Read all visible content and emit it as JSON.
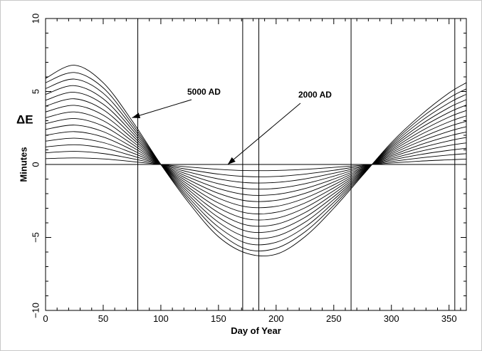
{
  "chart_data": {
    "type": "line",
    "title": "",
    "xlabel": "Day of Year",
    "ylabel": "Minutes",
    "side_label": "ΔE",
    "xlim": [
      0,
      365
    ],
    "ylim": [
      -10,
      10
    ],
    "x_ticks": [
      0,
      50,
      100,
      150,
      200,
      250,
      300,
      350
    ],
    "x_tick_labels": [
      "0",
      "50",
      "100",
      "150",
      "200",
      "250",
      "300",
      "350"
    ],
    "y_ticks": [
      -10,
      -5,
      0,
      5,
      10
    ],
    "y_tick_labels": [
      "−10",
      "−5",
      "0",
      "5",
      "10"
    ],
    "grid": false,
    "reference_lines_x": [
      80,
      171,
      185,
      265,
      355
    ],
    "reference_line_y": 0,
    "series_count": 15,
    "x": [
      0,
      25,
      50,
      75,
      100,
      125,
      150,
      175,
      200,
      225,
      250,
      275,
      300,
      325,
      350,
      365
    ],
    "series": [
      {
        "values": [
          0.4,
          0.45,
          0.38,
          0.2,
          0.0,
          -0.18,
          -0.33,
          -0.42,
          -0.41,
          -0.33,
          -0.2,
          -0.05,
          0.1,
          0.23,
          0.32,
          0.37
        ]
      },
      {
        "values": [
          0.8,
          0.9,
          0.75,
          0.4,
          0.0,
          -0.36,
          -0.66,
          -0.83,
          -0.82,
          -0.66,
          -0.4,
          -0.1,
          0.2,
          0.45,
          0.65,
          0.74
        ]
      },
      {
        "values": [
          1.2,
          1.35,
          1.13,
          0.6,
          0.0,
          -0.54,
          -0.99,
          -1.25,
          -1.23,
          -0.99,
          -0.6,
          -0.15,
          0.3,
          0.68,
          0.97,
          1.11
        ]
      },
      {
        "values": [
          1.6,
          1.8,
          1.5,
          0.8,
          0.0,
          -0.72,
          -1.32,
          -1.66,
          -1.64,
          -1.32,
          -0.8,
          -0.2,
          0.4,
          0.9,
          1.3,
          1.48
        ]
      },
      {
        "values": [
          2.0,
          2.25,
          1.88,
          1.0,
          0.0,
          -0.9,
          -1.65,
          -2.08,
          -2.05,
          -1.65,
          -1.0,
          -0.25,
          0.5,
          1.13,
          1.62,
          1.85
        ]
      },
      {
        "values": [
          2.4,
          2.7,
          2.25,
          1.2,
          0.0,
          -1.08,
          -1.98,
          -2.5,
          -2.46,
          -1.98,
          -1.2,
          -0.3,
          0.6,
          1.35,
          1.95,
          2.22
        ]
      },
      {
        "values": [
          2.8,
          3.15,
          2.63,
          1.4,
          0.0,
          -1.26,
          -2.31,
          -2.91,
          -2.87,
          -2.31,
          -1.4,
          -0.35,
          0.7,
          1.58,
          2.27,
          2.59
        ]
      },
      {
        "values": [
          3.2,
          3.6,
          3.0,
          1.6,
          0.0,
          -1.44,
          -2.64,
          -3.33,
          -3.28,
          -2.64,
          -1.6,
          -0.4,
          0.8,
          1.8,
          2.6,
          2.96
        ]
      },
      {
        "values": [
          3.6,
          4.05,
          3.38,
          1.8,
          0.0,
          -1.62,
          -2.97,
          -3.74,
          -3.69,
          -2.97,
          -1.8,
          -0.45,
          0.9,
          2.03,
          2.92,
          3.33
        ]
      },
      {
        "values": [
          4.0,
          4.5,
          3.75,
          2.0,
          0.0,
          -1.8,
          -3.3,
          -4.16,
          -4.1,
          -3.3,
          -2.0,
          -0.5,
          1.0,
          2.25,
          3.25,
          3.7
        ]
      },
      {
        "values": [
          4.4,
          4.95,
          4.13,
          2.2,
          0.0,
          -1.98,
          -3.63,
          -4.58,
          -4.51,
          -3.63,
          -2.2,
          -0.55,
          1.1,
          2.48,
          3.57,
          4.07
        ]
      },
      {
        "values": [
          4.8,
          5.4,
          4.5,
          2.4,
          0.0,
          -2.16,
          -3.96,
          -4.99,
          -4.92,
          -3.96,
          -2.4,
          -0.6,
          1.2,
          2.7,
          3.9,
          4.44
        ]
      },
      {
        "values": [
          5.2,
          5.85,
          4.88,
          2.6,
          0.0,
          -2.34,
          -4.29,
          -5.41,
          -5.33,
          -4.29,
          -2.6,
          -0.65,
          1.3,
          2.93,
          4.22,
          4.81
        ]
      },
      {
        "values": [
          5.6,
          6.3,
          5.25,
          2.8,
          0.0,
          -2.52,
          -4.62,
          -5.82,
          -5.74,
          -4.62,
          -2.8,
          -0.7,
          1.4,
          3.15,
          4.55,
          5.18
        ]
      },
      {
        "values": [
          5.9,
          6.8,
          5.6,
          3.0,
          0.0,
          -2.7,
          -4.95,
          -6.1,
          -6.15,
          -4.95,
          -3.0,
          -0.75,
          1.5,
          3.35,
          4.9,
          5.6
        ]
      }
    ],
    "annotations": [
      {
        "text": "5000 AD",
        "points_to": {
          "x": 75,
          "y": 3.2
        }
      },
      {
        "text": "2000 AD",
        "points_to": {
          "x": 158,
          "y": 0.0
        }
      }
    ]
  }
}
